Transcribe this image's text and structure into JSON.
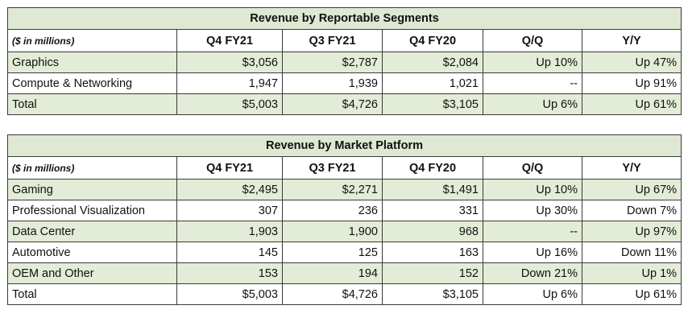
{
  "segments": {
    "title": "Revenue by Reportable Segments",
    "headers": [
      "($ in millions)",
      "Q4 FY21",
      "Q3 FY21",
      "Q4 FY20",
      "Q/Q",
      "Y/Y"
    ],
    "rows": [
      [
        "Graphics",
        "$3,056",
        "$2,787",
        "$2,084",
        "Up 10%",
        "Up 47%"
      ],
      [
        "Compute & Networking",
        "1,947",
        "1,939",
        "1,021",
        "--",
        "Up 91%"
      ],
      [
        "Total",
        "$5,003",
        "$4,726",
        "$3,105",
        "Up 6%",
        "Up 61%"
      ]
    ]
  },
  "platform": {
    "title": "Revenue by Market Platform",
    "headers": [
      "($ in millions)",
      "Q4 FY21",
      "Q3 FY21",
      "Q4 FY20",
      "Q/Q",
      "Y/Y"
    ],
    "rows": [
      [
        "Gaming",
        "$2,495",
        "$2,271",
        "$1,491",
        "Up 10%",
        "Up 67%"
      ],
      [
        "Professional Visualization",
        "307",
        "236",
        "331",
        "Up 30%",
        "Down 7%"
      ],
      [
        "Data Center",
        "1,903",
        "1,900",
        "968",
        "--",
        "Up 97%"
      ],
      [
        "Automotive",
        "145",
        "125",
        "163",
        "Up 16%",
        "Down 11%"
      ],
      [
        "OEM and Other",
        "153",
        "194",
        "152",
        "Down 21%",
        "Up 1%"
      ],
      [
        "Total",
        "$5,003",
        "$4,726",
        "$3,105",
        "Up 6%",
        "Up 61%"
      ]
    ]
  },
  "colors": {
    "title_band": "#dfe8d2",
    "row_shade": "#e3ecd6",
    "border": "#3a3a3a"
  }
}
